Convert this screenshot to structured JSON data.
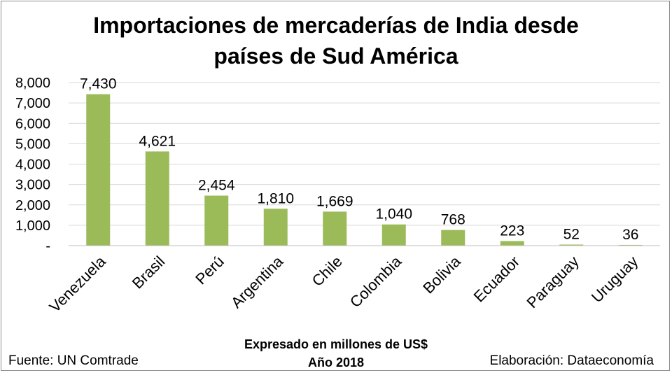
{
  "chart_data": {
    "type": "bar",
    "title_line1": "Importaciones de mercaderías de India desde",
    "title_line2": "países de Sud América",
    "categories": [
      "Venezuela",
      "Brasil",
      "Perú",
      "Argentina",
      "Chile",
      "Colombia",
      "Bolivia",
      "Ecuador",
      "Paraguay",
      "Uruguay"
    ],
    "values": [
      7430,
      4621,
      2454,
      1810,
      1669,
      1040,
      768,
      223,
      52,
      36
    ],
    "value_labels": [
      "7,430",
      "4,621",
      "2,454",
      "1,810",
      "1,669",
      "1,040",
      "768",
      "223",
      "52",
      "36"
    ],
    "yticks": [
      0,
      1000,
      2000,
      3000,
      4000,
      5000,
      6000,
      7000,
      8000
    ],
    "ytick_labels": [
      "-",
      "1,000",
      "2,000",
      "3,000",
      "4,000",
      "5,000",
      "6,000",
      "7,000",
      "8,000"
    ],
    "ylim": [
      0,
      8000
    ],
    "xlabel": "Expresado en millones de US$",
    "xlabel_sub": "Año 2018",
    "ylabel": "",
    "grid": true,
    "bar_color": "#9bbb59",
    "grid_color": "#d9d9d9"
  },
  "footer": {
    "source": "Fuente: UN Comtrade",
    "credit": "Elaboración: Dataeconomía"
  }
}
